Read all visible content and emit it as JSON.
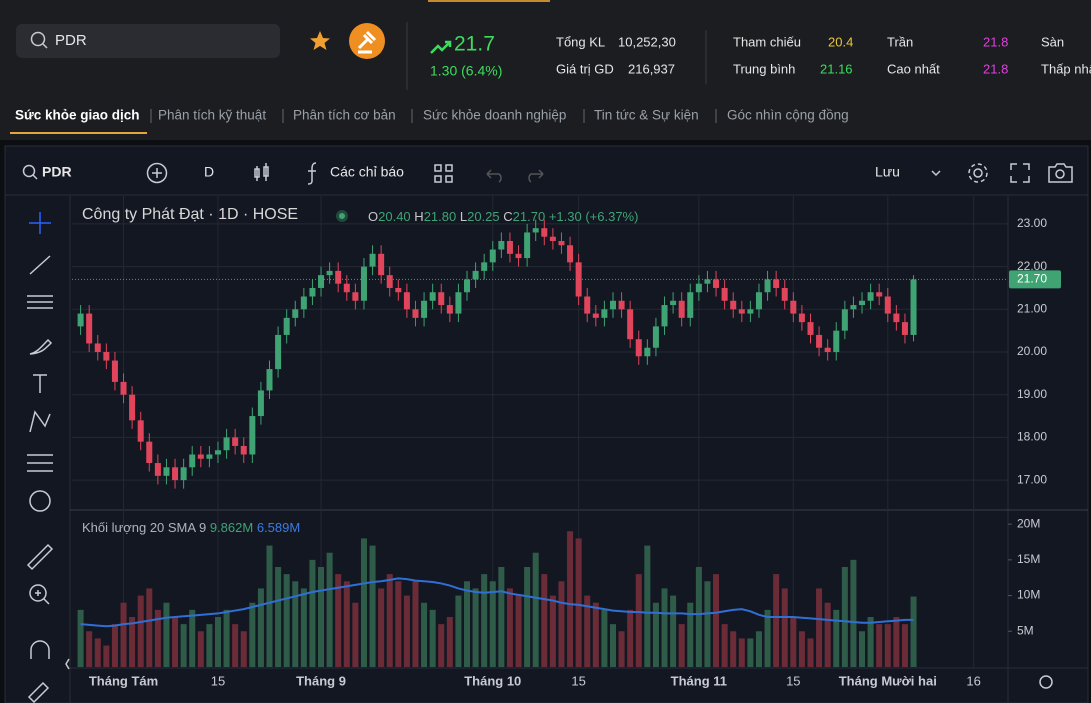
{
  "header": {
    "search": "PDR",
    "price": "21.7",
    "change": "1.30 (6.4%)",
    "stats": [
      {
        "label": "Tổng KL",
        "value": "10,252,30"
      },
      {
        "label": "Giá trị GD",
        "value": "216,937"
      }
    ],
    "refs": [
      {
        "label": "Tham chiếu",
        "value": "20.4"
      },
      {
        "label": "Trung bình",
        "value": "21.16"
      },
      {
        "label": "Trần",
        "value": "21.8"
      },
      {
        "label": "Cao nhất",
        "value": "21.8"
      },
      {
        "label": "Sàn"
      },
      {
        "label": "Thấp nhất"
      }
    ]
  },
  "tabs": [
    "Sức khỏe giao dịch",
    "Phân tích kỹ thuật",
    "Phân tích cơ bản",
    "Sức khỏe doanh nghiệp",
    "Tin tức & Sự kiện",
    "Góc nhìn cộng đồng"
  ],
  "toolbar": {
    "symbol": "PDR",
    "interval": "D",
    "indicators": "Các chỉ báo",
    "save": "Lưu"
  },
  "chart_data": {
    "type": "candlestick",
    "title": "Công ty Phát Đạt · 1D · HOSE",
    "ohlc_legend": [
      {
        "key": "O",
        "value": "20.40"
      },
      {
        "key": "H",
        "value": "21.80"
      },
      {
        "key": "L",
        "value": "20.25"
      },
      {
        "key": "C",
        "value": "21.70"
      }
    ],
    "change_label": "+1.30 (+6.37%)",
    "up_color": "#3fa373",
    "down_color": "#e0455c",
    "volume_up_color": "#2f5c48",
    "volume_down_color": "#6b2c38",
    "open": [
      20.6,
      20.9,
      20.2,
      20.0,
      19.8,
      19.3,
      19.0,
      18.4,
      17.9,
      17.4,
      17.1,
      17.3,
      17.0,
      17.3,
      17.6,
      17.5,
      17.6,
      17.7,
      18.0,
      17.8,
      17.6,
      18.5,
      19.1,
      19.6,
      20.4,
      20.8,
      21.0,
      21.3,
      21.5,
      21.8,
      21.9,
      21.6,
      21.4,
      21.2,
      22.0,
      22.3,
      21.8,
      21.5,
      21.4,
      21.0,
      20.8,
      21.2,
      21.4,
      21.1,
      20.9,
      21.4,
      21.7,
      21.9,
      22.1,
      22.4,
      22.6,
      22.3,
      22.2,
      22.8,
      22.9,
      22.7,
      22.6,
      22.5,
      22.1,
      21.3,
      20.9,
      20.8,
      21.0,
      21.2,
      21.0,
      20.3,
      19.9,
      20.1,
      20.6,
      21.1,
      21.2,
      20.8,
      21.4,
      21.6,
      21.7,
      21.5,
      21.2,
      21.0,
      20.9,
      21.0,
      21.4,
      21.7,
      21.5,
      21.2,
      20.9,
      20.7,
      20.4,
      20.1,
      20.0,
      20.5,
      21.0,
      21.1,
      21.2,
      21.4,
      21.3,
      20.9,
      20.7,
      20.4
    ],
    "high": [
      21.1,
      21.1,
      20.4,
      20.2,
      20.0,
      19.5,
      19.2,
      18.6,
      18.1,
      17.6,
      17.5,
      17.5,
      17.5,
      17.8,
      17.8,
      17.8,
      17.9,
      18.2,
      18.2,
      18.0,
      18.7,
      19.3,
      19.8,
      20.6,
      21.0,
      21.2,
      21.5,
      21.7,
      22.0,
      22.1,
      22.1,
      21.8,
      21.6,
      22.2,
      22.5,
      22.5,
      22.0,
      21.7,
      21.6,
      21.2,
      21.4,
      21.6,
      21.6,
      21.3,
      21.6,
      21.9,
      22.1,
      22.3,
      22.6,
      22.8,
      22.8,
      22.5,
      23.0,
      23.1,
      23.1,
      22.9,
      22.8,
      22.7,
      22.3,
      21.5,
      21.1,
      21.2,
      21.4,
      21.4,
      21.2,
      20.5,
      20.3,
      20.8,
      21.3,
      21.4,
      21.4,
      21.6,
      21.8,
      21.9,
      21.9,
      21.7,
      21.4,
      21.2,
      21.2,
      21.6,
      21.9,
      21.9,
      21.7,
      21.4,
      21.1,
      20.9,
      20.6,
      20.3,
      20.7,
      21.2,
      21.3,
      21.4,
      21.6,
      21.6,
      21.5,
      21.1,
      20.9,
      21.8
    ],
    "low": [
      20.4,
      20.0,
      19.8,
      19.6,
      19.1,
      18.8,
      18.2,
      17.7,
      17.2,
      16.9,
      16.9,
      16.8,
      16.8,
      17.1,
      17.3,
      17.3,
      17.4,
      17.5,
      17.6,
      17.4,
      17.4,
      18.3,
      18.9,
      19.4,
      20.2,
      20.6,
      20.8,
      21.1,
      21.3,
      21.6,
      21.4,
      21.2,
      21.0,
      21.0,
      21.8,
      21.6,
      21.3,
      21.2,
      20.8,
      20.6,
      20.6,
      21.0,
      20.9,
      20.7,
      20.7,
      21.2,
      21.5,
      21.7,
      21.9,
      22.2,
      22.1,
      22.0,
      22.0,
      22.6,
      22.5,
      22.4,
      22.3,
      21.9,
      21.1,
      20.7,
      20.6,
      20.6,
      20.8,
      20.8,
      20.1,
      19.7,
      19.7,
      19.9,
      20.4,
      20.9,
      20.6,
      20.6,
      21.2,
      21.4,
      21.3,
      21.0,
      20.8,
      20.7,
      20.7,
      20.8,
      21.2,
      21.3,
      21.0,
      20.7,
      20.5,
      20.2,
      19.9,
      19.8,
      19.8,
      20.3,
      20.8,
      20.9,
      21.0,
      21.1,
      20.7,
      20.5,
      20.2,
      20.25
    ],
    "close": [
      20.9,
      20.2,
      20.0,
      19.8,
      19.3,
      19.0,
      18.4,
      17.9,
      17.4,
      17.1,
      17.3,
      17.0,
      17.3,
      17.6,
      17.5,
      17.6,
      17.7,
      18.0,
      17.8,
      17.6,
      18.5,
      19.1,
      19.6,
      20.4,
      20.8,
      21.0,
      21.3,
      21.5,
      21.8,
      21.9,
      21.6,
      21.4,
      21.2,
      22.0,
      22.3,
      21.8,
      21.5,
      21.4,
      21.0,
      20.8,
      21.2,
      21.4,
      21.1,
      20.9,
      21.4,
      21.7,
      21.9,
      22.1,
      22.4,
      22.6,
      22.3,
      22.2,
      22.8,
      22.9,
      22.7,
      22.6,
      22.5,
      22.1,
      21.3,
      20.9,
      20.8,
      21.0,
      21.2,
      21.0,
      20.3,
      19.9,
      20.1,
      20.6,
      21.1,
      21.2,
      20.8,
      21.4,
      21.6,
      21.7,
      21.5,
      21.2,
      21.0,
      20.9,
      21.0,
      21.4,
      21.7,
      21.5,
      21.2,
      20.9,
      20.7,
      20.4,
      20.1,
      20.0,
      20.5,
      21.0,
      21.1,
      21.2,
      21.4,
      21.3,
      20.9,
      20.7,
      20.4,
      21.7
    ],
    "xlim": [
      -1,
      108
    ],
    "xticks": [
      {
        "value": 5,
        "label": "Tháng Tám"
      },
      {
        "value": 16,
        "label": "15"
      },
      {
        "value": 28,
        "label": "Tháng 9"
      },
      {
        "value": 48,
        "label": "Tháng 10"
      },
      {
        "value": 58,
        "label": "15"
      },
      {
        "value": 72,
        "label": "Tháng 11"
      },
      {
        "value": 83,
        "label": "15"
      },
      {
        "value": 94,
        "label": "Tháng Mười hai"
      },
      {
        "value": 104,
        "label": "16"
      }
    ],
    "ylim": [
      16.3,
      23.56
    ],
    "yticks": [
      {
        "value": 17,
        "label": "17.00"
      },
      {
        "value": 18,
        "label": "18.00"
      },
      {
        "value": 19,
        "label": "19.00"
      },
      {
        "value": 20,
        "label": "20.00"
      },
      {
        "value": 21,
        "label": "21.00"
      },
      {
        "value": 22,
        "label": "22.00"
      },
      {
        "value": 23,
        "label": "23.00"
      }
    ],
    "grid": true,
    "volume": {
      "title": "Khối lượng 20 SMA 9",
      "value_label": "9.862M",
      "ylim": [
        0,
        21.7
      ],
      "yticks": [
        {
          "value": 5,
          "label": "5M"
        },
        {
          "value": 10,
          "label": "10M"
        },
        {
          "value": 15,
          "label": "15M"
        },
        {
          "value": 20,
          "label": "20M"
        }
      ],
      "values": [
        8,
        5,
        4,
        3,
        6,
        9,
        7,
        10,
        11,
        8,
        9,
        7,
        6,
        8,
        5,
        6,
        7,
        8,
        6,
        5,
        9,
        11,
        17,
        14,
        13,
        12,
        11,
        15,
        14,
        16,
        13,
        12,
        9,
        18,
        17,
        11,
        13,
        12,
        10,
        12,
        9,
        8,
        6,
        7,
        10,
        12,
        11,
        13,
        12,
        14,
        11,
        10,
        14,
        16,
        13,
        10,
        12,
        19,
        18,
        10,
        9,
        8,
        6,
        5,
        8,
        13,
        17,
        9,
        11,
        10,
        6,
        9,
        14,
        12,
        13,
        6,
        5,
        4,
        4,
        5,
        8,
        13,
        11,
        7,
        5,
        4,
        11,
        9,
        8,
        14,
        15,
        5,
        7,
        6,
        6,
        7,
        6,
        9.862
      ],
      "sma": {
        "color": "#2f6fd6",
        "value_label": "6.589M",
        "values": [
          6.0,
          5.9,
          5.8,
          5.7,
          5.8,
          6.0,
          6.1,
          6.3,
          6.5,
          6.7,
          6.9,
          7.0,
          7.1,
          7.2,
          7.3,
          7.4,
          7.5,
          7.7,
          7.9,
          8.1,
          8.4,
          8.7,
          9.0,
          9.3,
          9.6,
          9.9,
          10.2,
          10.5,
          10.7,
          10.9,
          11.1,
          11.3,
          11.5,
          11.7,
          11.9,
          12.0,
          12.2,
          12.4,
          12.3,
          12.1,
          12.0,
          11.9,
          11.7,
          11.4,
          11.0,
          10.7,
          10.5,
          10.4,
          10.5,
          10.6,
          10.3,
          10.1,
          9.9,
          9.7,
          9.5,
          9.3,
          9.0,
          8.8,
          8.7,
          8.5,
          8.3,
          8.1,
          7.9,
          7.8,
          7.7,
          7.7,
          7.6,
          7.6,
          7.5,
          7.5,
          7.5,
          7.4,
          7.4,
          7.5,
          7.6,
          7.8,
          8.0,
          8.1,
          7.8,
          7.3,
          7.0,
          7.0,
          7.0,
          7.0,
          6.9,
          6.8,
          6.7,
          6.6,
          6.5,
          6.4,
          6.3,
          6.2,
          6.2,
          6.3,
          6.4,
          6.5,
          6.6,
          6.589
        ]
      }
    }
  }
}
